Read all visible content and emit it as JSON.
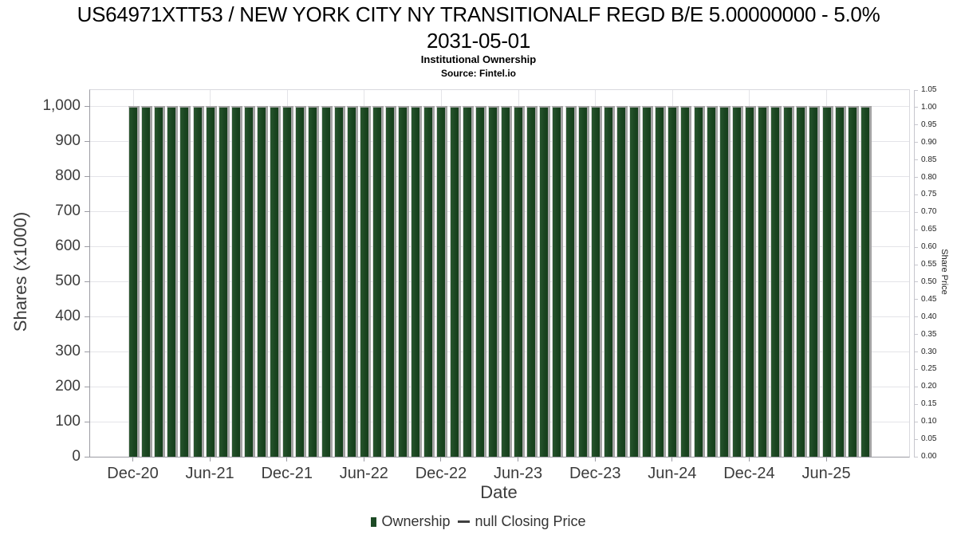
{
  "header": {
    "title_line1": "US64971XTT53 / NEW YORK CITY NY TRANSITIONALF REGD B/E 5.00000000 - 5.0%",
    "title_line2": "2031-05-01",
    "subtitle": "Institutional Ownership",
    "source": "Source: Fintel.io"
  },
  "legend": {
    "items": [
      {
        "label": "Ownership",
        "marker": "square",
        "color": "#1d4a25"
      },
      {
        "label": "null Closing Price",
        "marker": "line",
        "color": "#3f3f3f"
      }
    ]
  },
  "chart_data": {
    "type": "bar",
    "title": "US64971XTT53 / NEW YORK CITY NY TRANSITIONALF REGD B/E 5.00000000 - 5.0% 2031-05-01",
    "subtitle": "Institutional Ownership",
    "source": "Fintel.io",
    "xlabel": "Date",
    "ylabel": "Shares (x1000)",
    "ylabel_right": "Share Price",
    "grid": true,
    "legend_position": "bottom",
    "ylim_left": [
      0,
      1045
    ],
    "ylim_right": [
      0,
      1.05
    ],
    "categories": [
      "Dec-20",
      "Jan-21",
      "Feb-21",
      "Mar-21",
      "Apr-21",
      "May-21",
      "Jun-21",
      "Jul-21",
      "Aug-21",
      "Sep-21",
      "Oct-21",
      "Nov-21",
      "Dec-21",
      "Jan-22",
      "Feb-22",
      "Mar-22",
      "Apr-22",
      "May-22",
      "Jun-22",
      "Jul-22",
      "Aug-22",
      "Sep-22",
      "Oct-22",
      "Nov-22",
      "Dec-22",
      "Jan-23",
      "Feb-23",
      "Mar-23",
      "Apr-23",
      "May-23",
      "Jun-23",
      "Jul-23",
      "Aug-23",
      "Sep-23",
      "Oct-23",
      "Nov-23",
      "Dec-23",
      "Jan-24",
      "Feb-24",
      "Mar-24",
      "Apr-24",
      "May-24",
      "Jun-24",
      "Jul-24",
      "Aug-24",
      "Sep-24",
      "Oct-24",
      "Nov-24",
      "Dec-24",
      "Jan-25",
      "Feb-25",
      "Mar-25",
      "Apr-25",
      "May-25",
      "Jun-25",
      "Jul-25",
      "Aug-25",
      "Sep-25"
    ],
    "series": [
      {
        "name": "Ownership",
        "axis": "left",
        "values": [
          1000,
          1000,
          1000,
          1000,
          1000,
          1000,
          1000,
          1000,
          1000,
          1000,
          1000,
          1000,
          1000,
          1000,
          1000,
          1000,
          1000,
          1000,
          1000,
          1000,
          1000,
          1000,
          1000,
          1000,
          1000,
          1000,
          1000,
          1000,
          1000,
          1000,
          1000,
          1000,
          1000,
          1000,
          1000,
          1000,
          1000,
          1000,
          1000,
          1000,
          1000,
          1000,
          1000,
          1000,
          1000,
          1000,
          1000,
          1000,
          1000,
          1000,
          1000,
          1000,
          1000,
          1000,
          1000,
          1000,
          1000,
          1000
        ]
      },
      {
        "name": "null Closing Price",
        "axis": "right",
        "values": []
      }
    ],
    "left_axis": {
      "title": "Shares (x1000)",
      "max": 1000,
      "tick_labels": [
        "0",
        "100",
        "200",
        "300",
        "400",
        "500",
        "600",
        "700",
        "800",
        "900",
        "1,000"
      ],
      "tick_values": [
        0,
        100,
        200,
        300,
        400,
        500,
        600,
        700,
        800,
        900,
        1000
      ]
    },
    "right_axis": {
      "title": "Share Price",
      "max": 1.05,
      "tick_labels": [
        "0.00",
        "0.05",
        "0.10",
        "0.15",
        "0.20",
        "0.25",
        "0.30",
        "0.35",
        "0.40",
        "0.45",
        "0.50",
        "0.55",
        "0.60",
        "0.65",
        "0.70",
        "0.75",
        "0.80",
        "0.85",
        "0.90",
        "0.95",
        "1.00",
        "1.05"
      ],
      "tick_values": [
        0,
        0.05,
        0.1,
        0.15,
        0.2,
        0.25,
        0.3,
        0.35,
        0.4,
        0.45,
        0.5,
        0.55,
        0.6,
        0.65,
        0.7,
        0.75,
        0.8,
        0.85,
        0.9,
        0.95,
        1.0,
        1.05
      ]
    },
    "x_axis": {
      "title": "Date",
      "tick_labels": [
        "Dec-20",
        "Jun-21",
        "Dec-21",
        "Jun-22",
        "Dec-22",
        "Jun-23",
        "Dec-23",
        "Jun-24",
        "Dec-24",
        "Jun-25"
      ],
      "tick_indices": [
        0,
        6,
        12,
        18,
        24,
        30,
        36,
        42,
        48,
        54
      ]
    },
    "colors": {
      "bar": "#1d4a25",
      "bar_gradient_left": "#27552e",
      "bar_gradient_mid": "#1b4621",
      "bar_gradient_right": "#153e1b",
      "bar_shadow": "#a3a3a3",
      "grid": "#e4e4e8",
      "axis": "#9b9ba3",
      "title_text": "#000000",
      "label_text": "#3c3c3c"
    }
  }
}
